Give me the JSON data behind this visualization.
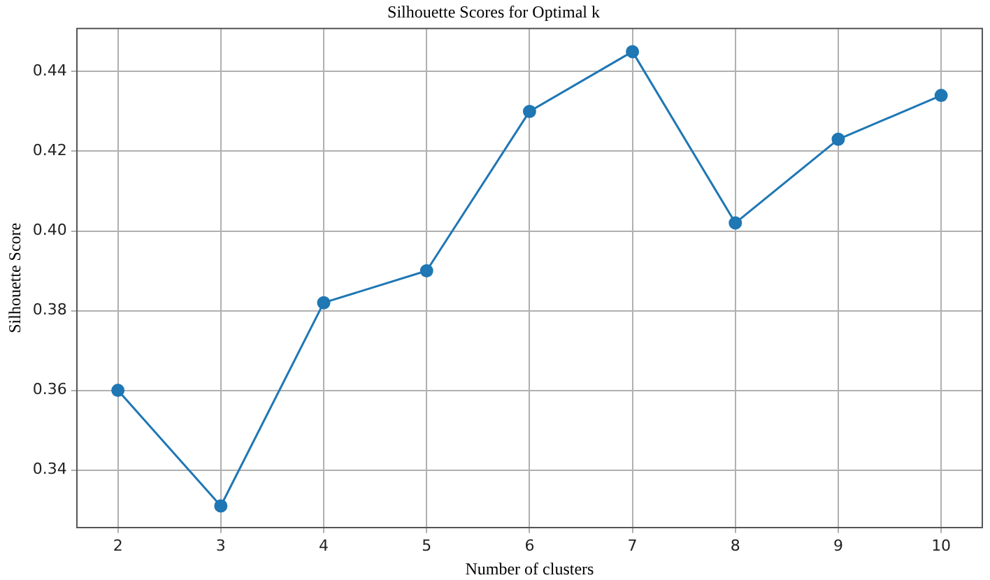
{
  "chart_data": {
    "type": "line",
    "title": "Silhouette Scores for Optimal k",
    "xlabel": "Number of clusters",
    "ylabel": "Silhouette Score",
    "x": [
      2,
      3,
      4,
      5,
      6,
      7,
      8,
      9,
      10
    ],
    "series": [
      {
        "color": "#1f77b4",
        "values": [
          0.36,
          0.331,
          0.382,
          0.39,
          0.43,
          0.445,
          0.402,
          0.423,
          0.434
        ]
      }
    ],
    "xlim": [
      1.6,
      10.4
    ],
    "xticks": [
      2,
      3,
      4,
      5,
      6,
      7,
      8,
      9,
      10
    ],
    "ylim": [
      0.3256,
      0.4508
    ],
    "yticks": [
      {
        "value": 0.34,
        "label": "0.34"
      },
      {
        "value": 0.36,
        "label": "0.36"
      },
      {
        "value": 0.38,
        "label": "0.38"
      },
      {
        "value": 0.4,
        "label": "0.40"
      },
      {
        "value": 0.42,
        "label": "0.42"
      },
      {
        "value": 0.44,
        "label": "0.44"
      }
    ],
    "grid": true,
    "marker": "circle",
    "line_style": "solid"
  }
}
